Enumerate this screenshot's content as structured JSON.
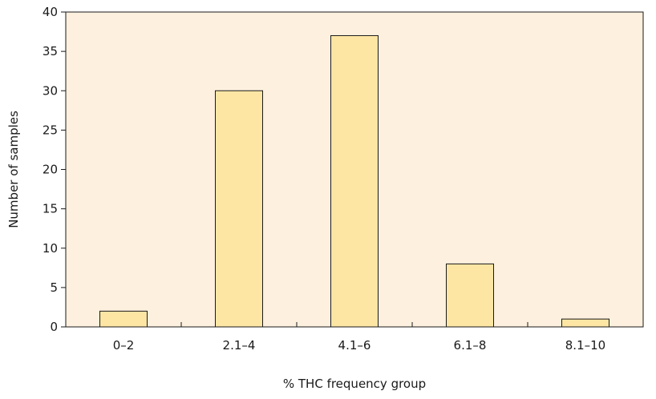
{
  "chart_data": {
    "type": "bar",
    "title": "",
    "xlabel": "% THC frequency group",
    "ylabel": "Number of samples",
    "categories": [
      "0–2",
      "2.1–4",
      "4.1–6",
      "6.1–8",
      "8.1–10"
    ],
    "values": [
      2,
      30,
      37,
      8,
      1
    ],
    "ylim": [
      0,
      40
    ],
    "yticks": [
      0,
      5,
      10,
      15,
      20,
      25,
      30,
      35,
      40
    ],
    "grid": false,
    "legend": "none",
    "colors": {
      "plot_background": "#FDF0DE",
      "bar_fill": "#FDE6A4",
      "bar_stroke": "#1a1a1a",
      "axis": "#1a1a1a"
    }
  }
}
